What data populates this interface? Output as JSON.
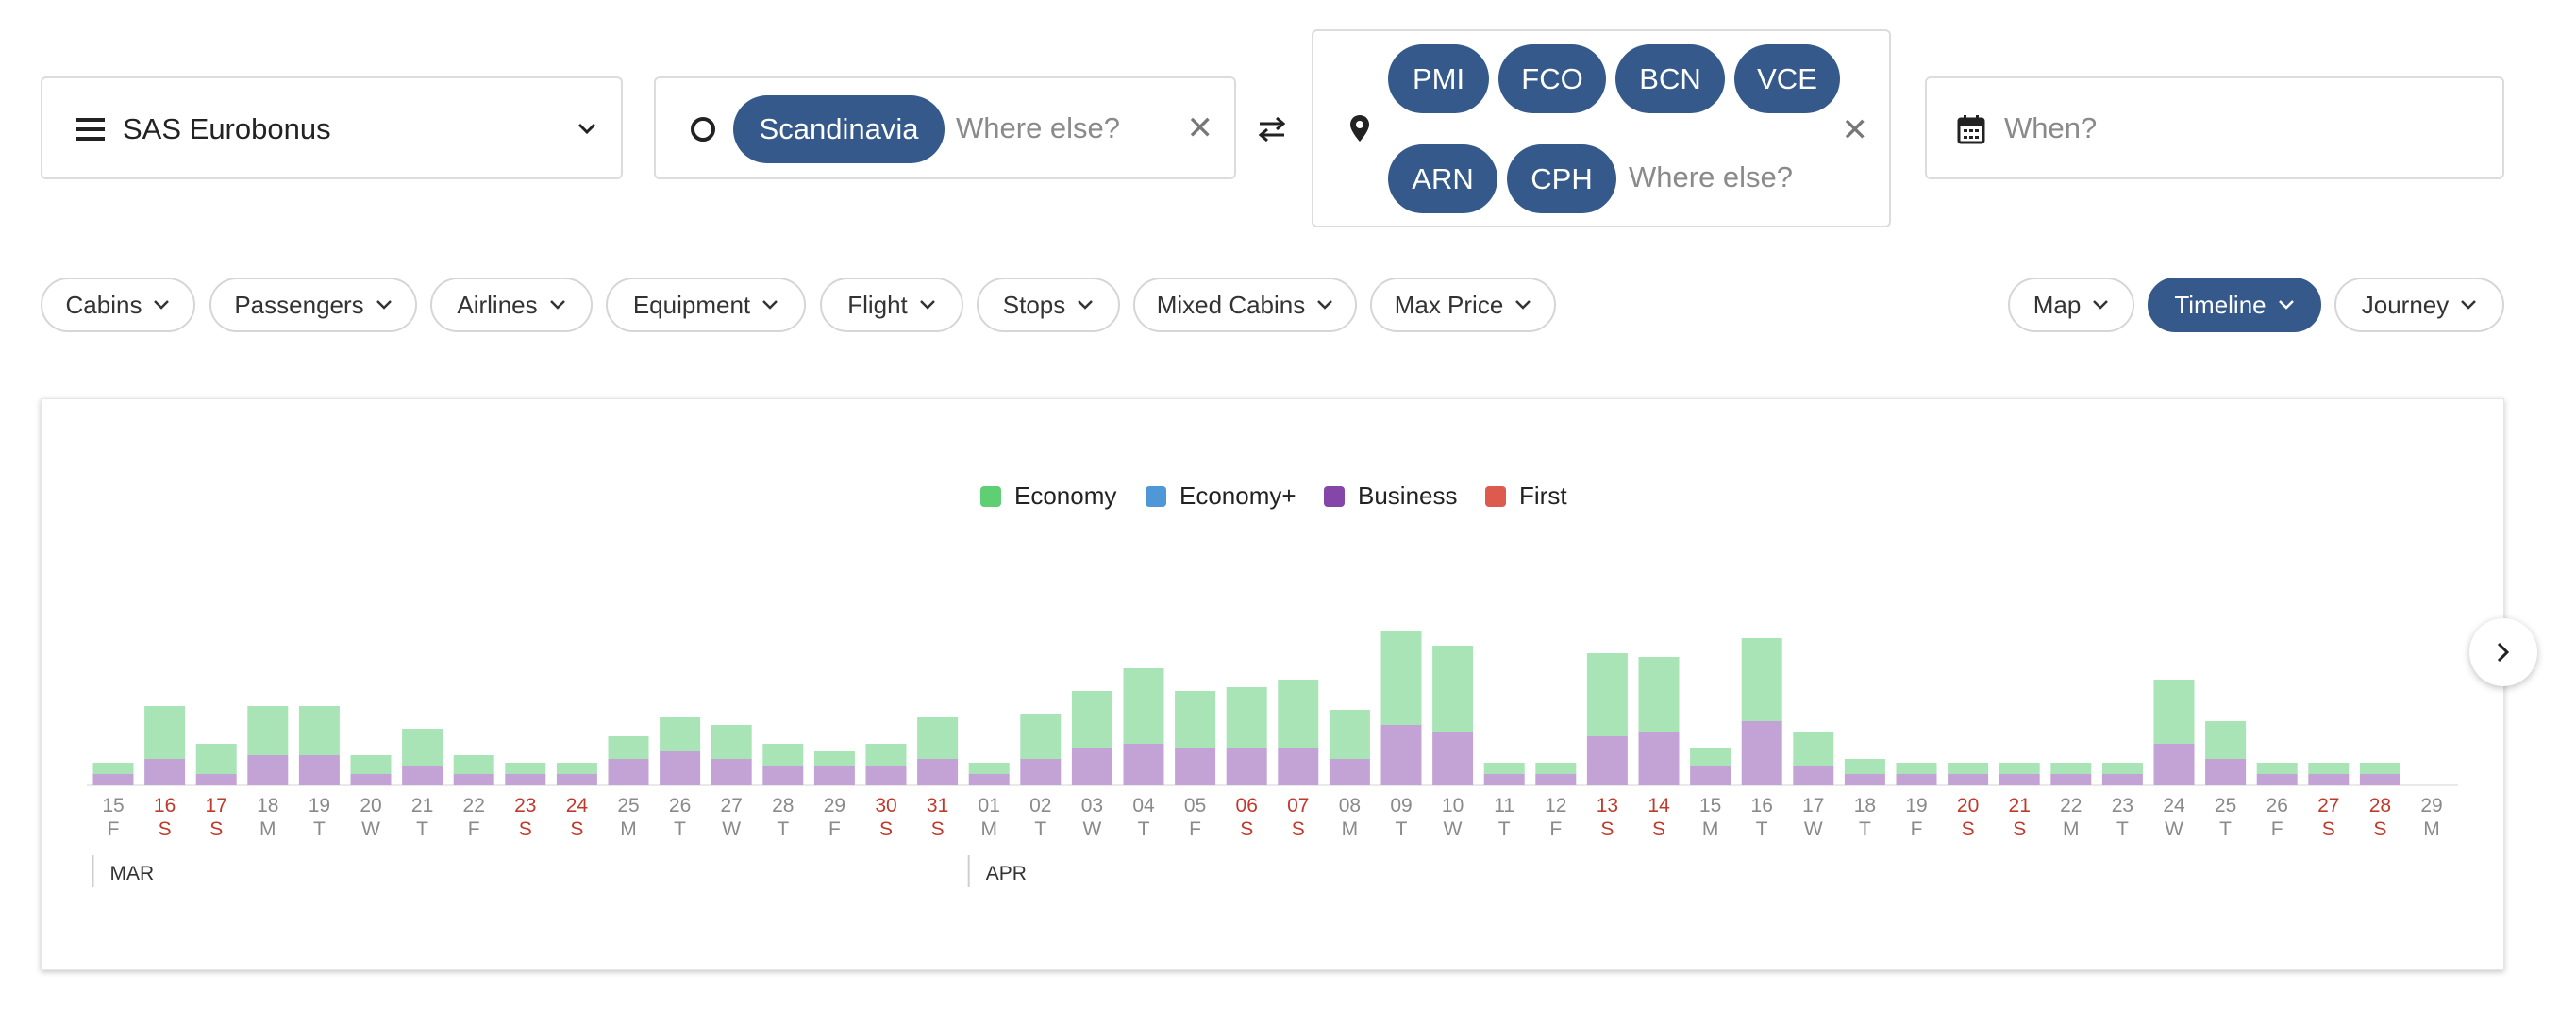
{
  "program": {
    "label": "SAS Eurobonus"
  },
  "origin": {
    "chip": "Scandinavia",
    "placeholder": "Where else?"
  },
  "destination": {
    "chips": [
      "PMI",
      "FCO",
      "BCN",
      "VCE",
      "ARN",
      "CPH"
    ],
    "placeholder": "Where else?"
  },
  "date": {
    "placeholder": "When?"
  },
  "filters": [
    "Cabins",
    "Passengers",
    "Airlines",
    "Equipment",
    "Flight",
    "Stops",
    "Mixed Cabins",
    "Max Price"
  ],
  "views": {
    "map": "Map",
    "timeline": "Timeline",
    "journey": "Journey",
    "active": "Timeline"
  },
  "colors": {
    "accent": "#34598a",
    "economy": "#a9e4b6",
    "business": "#c3a3d6",
    "weekend": "#c0392b"
  },
  "legend": [
    {
      "label": "Economy",
      "color": "#5fcf73"
    },
    {
      "label": "Economy+",
      "color": "#4f97d6"
    },
    {
      "label": "Business",
      "color": "#8446a8"
    },
    {
      "label": "First",
      "color": "#dd5a4f"
    }
  ],
  "chart_data": {
    "type": "bar",
    "stacked": true,
    "months": [
      "MAR",
      "APR"
    ],
    "categories": [
      "15",
      "16",
      "17",
      "18",
      "19",
      "20",
      "21",
      "22",
      "23",
      "24",
      "25",
      "26",
      "27",
      "28",
      "29",
      "30",
      "31",
      "01",
      "02",
      "03",
      "04",
      "05",
      "06",
      "07",
      "08",
      "09",
      "10",
      "11",
      "12",
      "13",
      "14",
      "15",
      "16",
      "17",
      "18",
      "19",
      "20",
      "21",
      "22",
      "23",
      "24",
      "25",
      "26",
      "27",
      "28",
      "29"
    ],
    "weekdays": [
      "F",
      "S",
      "S",
      "M",
      "T",
      "W",
      "T",
      "F",
      "S",
      "S",
      "M",
      "T",
      "W",
      "T",
      "F",
      "S",
      "S",
      "M",
      "T",
      "W",
      "T",
      "F",
      "S",
      "S",
      "M",
      "T",
      "W",
      "T",
      "F",
      "S",
      "S",
      "M",
      "T",
      "W",
      "T",
      "F",
      "S",
      "S",
      "M",
      "T",
      "W",
      "T",
      "F",
      "S",
      "S",
      "M"
    ],
    "weekend": [
      false,
      true,
      true,
      false,
      false,
      false,
      false,
      false,
      true,
      true,
      false,
      false,
      false,
      false,
      false,
      true,
      true,
      false,
      false,
      false,
      false,
      false,
      true,
      true,
      false,
      false,
      false,
      false,
      false,
      true,
      true,
      false,
      false,
      false,
      false,
      false,
      true,
      true,
      false,
      false,
      false,
      false,
      false,
      true,
      true,
      false
    ],
    "series": [
      {
        "name": "Business",
        "values": [
          3,
          7,
          3,
          8,
          8,
          3,
          5,
          3,
          3,
          3,
          7,
          9,
          7,
          5,
          5,
          5,
          7,
          3,
          7,
          10,
          11,
          10,
          10,
          10,
          7,
          16,
          14,
          3,
          3,
          13,
          14,
          5,
          17,
          5,
          3,
          3,
          3,
          3,
          3,
          3,
          11,
          7,
          3,
          3,
          3,
          0
        ]
      },
      {
        "name": "Economy",
        "values": [
          3,
          14,
          8,
          13,
          13,
          5,
          10,
          5,
          3,
          3,
          6,
          9,
          9,
          6,
          4,
          6,
          11,
          3,
          12,
          15,
          20,
          15,
          16,
          18,
          13,
          25,
          23,
          3,
          3,
          22,
          20,
          5,
          22,
          9,
          4,
          3,
          3,
          3,
          3,
          3,
          17,
          10,
          3,
          3,
          3,
          0
        ]
      }
    ],
    "ylim": [
      0,
      45
    ]
  }
}
